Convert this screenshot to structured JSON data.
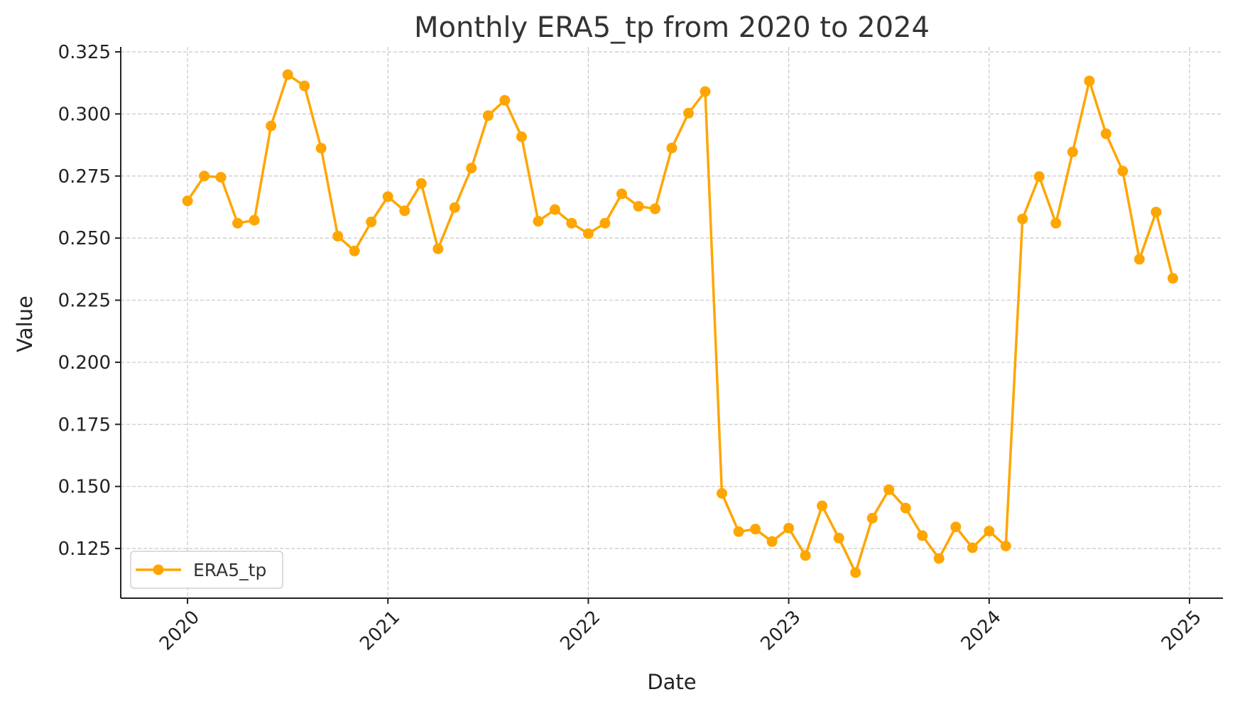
{
  "chart_data": {
    "type": "line",
    "title": "Monthly ERA5_tp from 2020 to 2024",
    "xlabel": "Date",
    "ylabel": "Value",
    "x_ticks": [
      "2020",
      "2021",
      "2022",
      "2023",
      "2024",
      "2025"
    ],
    "y_ticks": [
      "0.125",
      "0.150",
      "0.175",
      "0.200",
      "0.225",
      "0.250",
      "0.275",
      "0.300",
      "0.325"
    ],
    "ylim": [
      0.105,
      0.327
    ],
    "xlim": [
      "2019-09",
      "2025-03"
    ],
    "grid": true,
    "legend_position": "lower-left",
    "colors": {
      "series": "#FFA500"
    },
    "x": [
      "2020-01",
      "2020-02",
      "2020-03",
      "2020-04",
      "2020-05",
      "2020-06",
      "2020-07",
      "2020-08",
      "2020-09",
      "2020-10",
      "2020-11",
      "2020-12",
      "2021-01",
      "2021-02",
      "2021-03",
      "2021-04",
      "2021-05",
      "2021-06",
      "2021-07",
      "2021-08",
      "2021-09",
      "2021-10",
      "2021-11",
      "2021-12",
      "2022-01",
      "2022-02",
      "2022-03",
      "2022-04",
      "2022-05",
      "2022-06",
      "2022-07",
      "2022-08",
      "2022-09",
      "2022-10",
      "2022-11",
      "2022-12",
      "2023-01",
      "2023-02",
      "2023-03",
      "2023-04",
      "2023-05",
      "2023-06",
      "2023-07",
      "2023-08",
      "2023-09",
      "2023-10",
      "2023-11",
      "2023-12",
      "2024-01",
      "2024-02",
      "2024-03",
      "2024-04",
      "2024-05",
      "2024-06",
      "2024-07",
      "2024-08",
      "2024-09",
      "2024-10",
      "2024-11",
      "2024-12"
    ],
    "series": [
      {
        "name": "ERA5_tp",
        "values": [
          0.265,
          0.275,
          0.2745,
          0.256,
          0.2572,
          0.2952,
          0.3158,
          0.3113,
          0.2862,
          0.2508,
          0.2448,
          0.2565,
          0.2667,
          0.261,
          0.272,
          0.2457,
          0.2623,
          0.2782,
          0.2993,
          0.3055,
          0.2908,
          0.2568,
          0.2615,
          0.256,
          0.2518,
          0.256,
          0.2678,
          0.2628,
          0.2618,
          0.2863,
          0.3003,
          0.309,
          0.1472,
          0.1318,
          0.1328,
          0.1278,
          0.1332,
          0.1222,
          0.1422,
          0.1292,
          0.1153,
          0.1372,
          0.1487,
          0.1413,
          0.1302,
          0.121,
          0.1337,
          0.1253,
          0.132,
          0.126,
          0.2577,
          0.2748,
          0.256,
          0.2847,
          0.3133,
          0.292,
          0.277,
          0.2415,
          0.2605,
          0.2338
        ]
      }
    ]
  }
}
